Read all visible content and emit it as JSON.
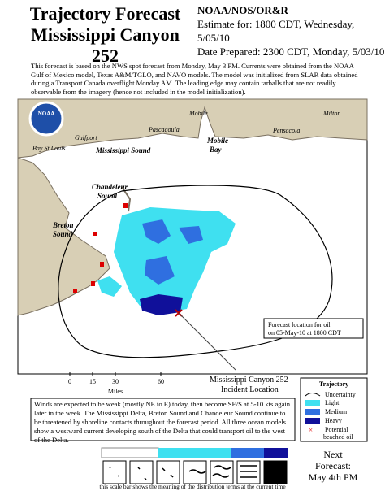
{
  "header": {
    "title_lines": [
      "Trajectory Forecast",
      "Mississippi Canyon 252"
    ],
    "agency": "NOAA/NOS/OR&R",
    "estimate": "Estimate for: 1800 CDT, Wednesday, 5/05/10",
    "prepared": "Date Prepared: 2300 CDT, Monday, 5/03/10"
  },
  "intro": "This forecast is based on the NWS spot forecast from Monday, May 3 PM. Currents were obtained from the NOAA Gulf of Mexico model, Texas A&M/TGLO, and NAVO models. The model was initialized from SLAR data obtained during a Transport Canada overflight Monday AM. The leading edge may contain tarballs that are not readily observable from the imagery (hence not included in the model initialization).",
  "map": {
    "places": [
      "Mobile",
      "Milton",
      "Gulfport",
      "Pascagoula",
      "Pensacola",
      "Bay St Louis"
    ],
    "water_labels": {
      "mississippi_sound": "Mississippi Sound",
      "mobile_bay": [
        "Mobile",
        "Bay"
      ],
      "chandeleur": [
        "Chandeleur",
        "Sound"
      ],
      "breton": [
        "Breton",
        "Sound"
      ]
    },
    "forecast_note": [
      "Forecast location for oil",
      "on 05-May-10 at 1800 CDT"
    ],
    "incident": [
      "Mississippi Canyon 252",
      "Incident Location"
    ]
  },
  "scale": {
    "ticks": [
      "0",
      "15",
      "30",
      "60"
    ],
    "unit": "Miles"
  },
  "legend": {
    "title": "Trajectory",
    "items": [
      "Uncertainty",
      "Light",
      "Medium",
      "Heavy"
    ],
    "beached": [
      "Potential",
      "beached oil"
    ]
  },
  "footer": "Winds are expected to be weak (mostly NE to E) today, then become SE/S at 5-10 kts again later in the week. The Mississippi Delta, Breton Sound and Chandeleur Sound continue to be threatened by shoreline contacts throughout the forecast period. All three ocean models show a westward current developing south of the Delta that could transport oil to the west of the Delta.",
  "next_forecast": [
    "Next",
    "Forecast:",
    "May 4th PM"
  ],
  "caption": "this scale bar shows the meaning of the distribution terms at the current time"
}
